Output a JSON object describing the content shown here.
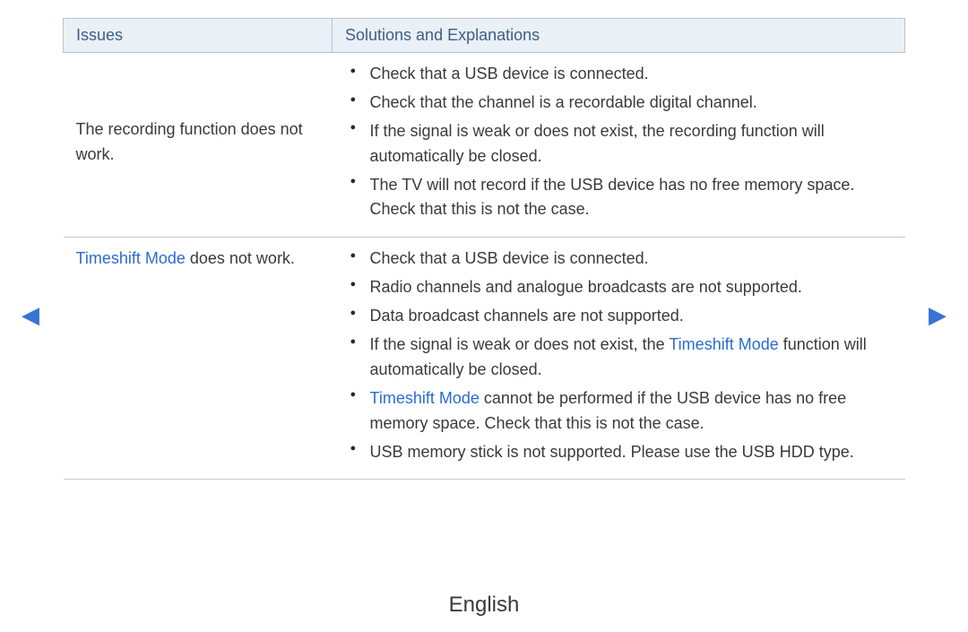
{
  "colors": {
    "header_bg": "#e9f0f6",
    "header_border": "#b9c3cc",
    "row_border": "#c6c9cc",
    "text": "#3a3a3a",
    "header_text": "#3f5d84",
    "highlight": "#2a6bd6",
    "arrow": "#3a73d6",
    "background": "#ffffff"
  },
  "table": {
    "headers": {
      "issues": "Issues",
      "solutions": "Solutions and Explanations"
    },
    "rows": [
      {
        "issue": "The recording function does not work.",
        "solutions": [
          [
            {
              "t": "Check that a USB device is connected."
            }
          ],
          [
            {
              "t": "Check that the channel is a recordable digital channel."
            }
          ],
          [
            {
              "t": "If the signal is weak or does not exist, the recording function will automatically be closed."
            }
          ],
          [
            {
              "t": "The TV will not record if the USB device has no free memory space. Check that this is not the case."
            }
          ]
        ]
      },
      {
        "issue_parts": [
          {
            "t": "Timeshift Mode",
            "hl": true
          },
          {
            "t": " does not work."
          }
        ],
        "solutions": [
          [
            {
              "t": "Check that a USB device is connected."
            }
          ],
          [
            {
              "t": "Radio channels and analogue broadcasts are not supported."
            }
          ],
          [
            {
              "t": "Data broadcast channels are not supported."
            }
          ],
          [
            {
              "t": "If the signal is weak or does not exist, the "
            },
            {
              "t": "Timeshift Mode",
              "hl": true
            },
            {
              "t": " function will automatically be closed."
            }
          ],
          [
            {
              "t": "Timeshift Mode",
              "hl": true
            },
            {
              "t": " cannot be performed if the USB device has no free memory space. Check that this is not the case."
            }
          ],
          [
            {
              "t": "USB memory stick is not supported. Please use the USB HDD type."
            }
          ]
        ]
      }
    ]
  },
  "nav": {
    "prev_glyph": "◀",
    "next_glyph": "▶"
  },
  "footer": {
    "language": "English"
  }
}
